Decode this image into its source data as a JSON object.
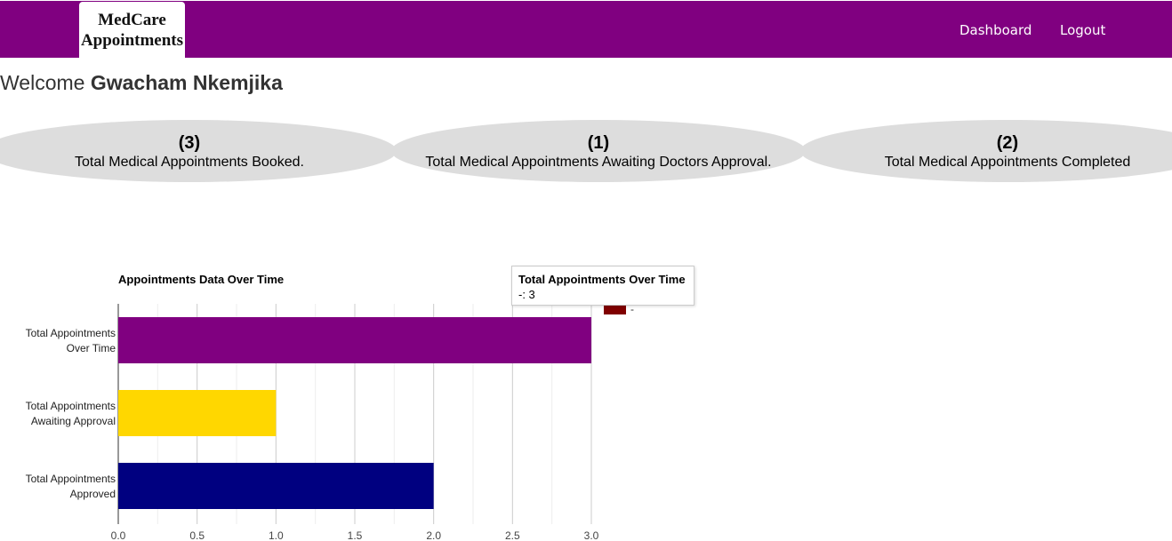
{
  "navbar": {
    "brand": "MedCare Appointments",
    "links": [
      "Dashboard",
      "Logout"
    ]
  },
  "welcome": {
    "prefix": "Welcome",
    "name": "Gwacham Nkemjika"
  },
  "stats": [
    {
      "count": "(3)",
      "label": "Total Medical Appointments Booked."
    },
    {
      "count": "(1)",
      "label": "Total Medical Appointments Awaiting Doctors Approval."
    },
    {
      "count": "(2)",
      "label": "Total Medical Appointments Completed"
    }
  ],
  "tooltip": {
    "title": "Total Appointments Over Time",
    "value": "-: 3"
  },
  "chart_data": {
    "type": "bar",
    "orientation": "horizontal",
    "title": "Appointments Data Over Time",
    "categories": [
      "Total Appointments Over Time",
      "Total Appointments Awaiting Approval",
      "Total Appointments Approved"
    ],
    "values": [
      3,
      1,
      2
    ],
    "colors": [
      "#800080",
      "#ffd700",
      "#000080"
    ],
    "legend_marker_color": "#800000",
    "legend_label": "-",
    "xlim": [
      0,
      3
    ],
    "xticks": [
      "0.0",
      "0.5",
      "1.0",
      "1.5",
      "2.0",
      "2.5",
      "3.0"
    ],
    "grid": true
  }
}
